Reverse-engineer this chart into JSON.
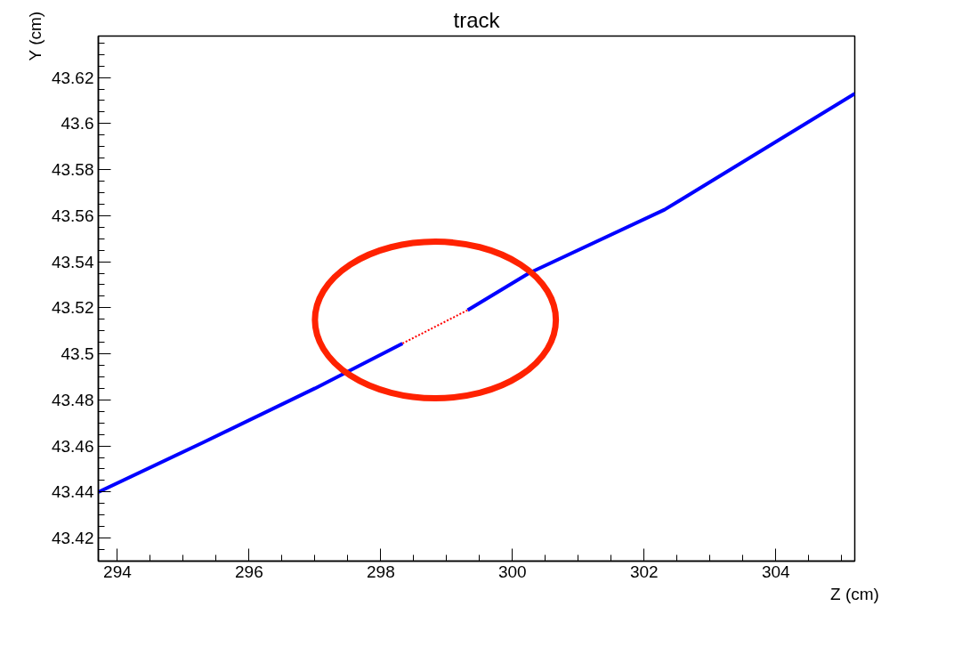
{
  "chart_data": {
    "type": "line",
    "title": "track",
    "xlabel": "Z (cm)",
    "ylabel": "Y (cm)",
    "xlim": [
      293.71,
      305.2
    ],
    "ylim": [
      43.41,
      43.638
    ],
    "xticks": [
      294,
      296,
      298,
      300,
      302,
      304
    ],
    "yticks": [
      43.42,
      43.44,
      43.46,
      43.48,
      43.5,
      43.52,
      43.54,
      43.56,
      43.58,
      43.6,
      43.62
    ],
    "grid": false,
    "marker": "none",
    "series": [
      {
        "color": "#0000ff",
        "line_style": "solid",
        "x": [
          293.71,
          295.3,
          297,
          298.33,
          298.8,
          299.32,
          300.25,
          302.31,
          305.2
        ],
        "values": [
          43.44,
          43.4615,
          43.485,
          43.5045,
          null,
          43.519,
          43.535,
          43.5626,
          43.613
        ]
      },
      {
        "color": "#ff0000",
        "line_style": "dotted",
        "x": [
          298.33,
          299.32
        ],
        "values": [
          43.5045,
          43.519
        ]
      }
    ]
  }
}
